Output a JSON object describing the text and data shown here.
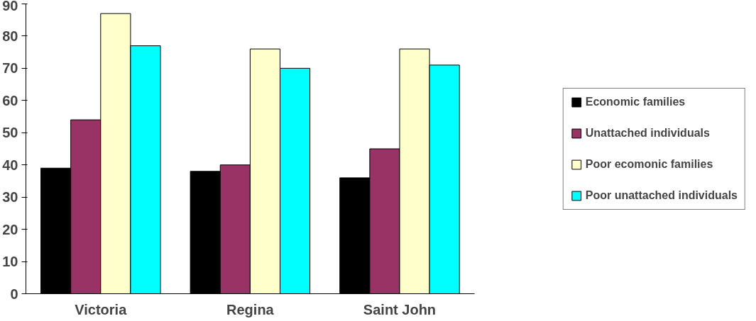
{
  "chart_data": {
    "type": "bar",
    "categories": [
      "Victoria",
      "Regina",
      "Saint John"
    ],
    "series": [
      {
        "name": "Economic families",
        "color": "#000000",
        "values": [
          39,
          38,
          36
        ]
      },
      {
        "name": "Unattached individuals",
        "color": "#993366",
        "values": [
          54,
          40,
          45
        ]
      },
      {
        "name": "Poor ecomonic families",
        "color": "#ffffcc",
        "values": [
          87,
          76,
          76
        ]
      },
      {
        "name": "Poor unattached individuals",
        "color": "#00ffff",
        "values": [
          77,
          70,
          71
        ]
      }
    ],
    "ylim": [
      0,
      90
    ],
    "yticks": [
      0,
      10,
      20,
      30,
      40,
      50,
      60,
      70,
      80,
      90
    ],
    "grid": false,
    "legend": "right"
  }
}
